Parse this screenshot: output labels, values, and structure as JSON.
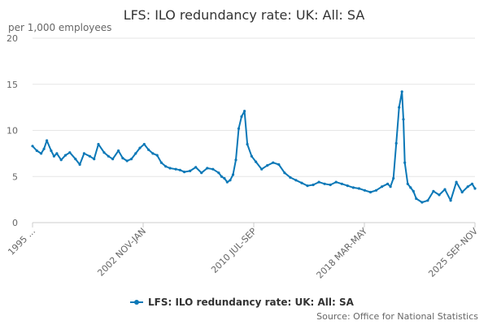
{
  "chart_data": {
    "type": "line",
    "title": "LFS: ILO redundancy rate: UK: All: SA",
    "unit_label": "per 1,000 employees",
    "ylim": [
      0,
      20
    ],
    "y_ticks": [
      0,
      5,
      10,
      15,
      20
    ],
    "x_tick_labels": [
      "1995 ...",
      "2002 NOV-JAN",
      "2010 JUL-SEP",
      "2018 MAR-MAY",
      "2025 SEP-NOV"
    ],
    "grid": true,
    "legend_position": "bottom",
    "source": "Source: Office for National Statistics",
    "series": [
      {
        "name": "LFS: ILO redundancy rate: UK: All: SA",
        "color": "#0b78b7",
        "x": [
          1995.0,
          1995.3,
          1995.6,
          1995.8,
          1996.0,
          1996.3,
          1996.5,
          1996.7,
          1997.0,
          1997.3,
          1997.6,
          1998.0,
          1998.3,
          1998.6,
          1999.0,
          1999.3,
          1999.6,
          2000.0,
          2000.3,
          2000.6,
          2001.0,
          2001.3,
          2001.6,
          2001.9,
          2002.2,
          2002.5,
          2002.8,
          2003.1,
          2003.4,
          2003.7,
          2004.0,
          2004.3,
          2004.6,
          2005.0,
          2005.3,
          2005.6,
          2006.0,
          2006.4,
          2006.8,
          2007.2,
          2007.6,
          2008.0,
          2008.2,
          2008.4,
          2008.6,
          2008.8,
          2009.0,
          2009.2,
          2009.4,
          2009.6,
          2009.8,
          2010.0,
          2010.3,
          2010.6,
          2011.0,
          2011.4,
          2011.8,
          2012.2,
          2012.6,
          2013.0,
          2013.4,
          2013.8,
          2014.2,
          2014.6,
          2015.0,
          2015.4,
          2015.8,
          2016.2,
          2016.6,
          2017.0,
          2017.4,
          2017.8,
          2018.2,
          2018.6,
          2019.0,
          2019.4,
          2019.8,
          2020.0,
          2020.2,
          2020.4,
          2020.6,
          2020.8,
          2020.9,
          2021.0,
          2021.2,
          2021.4,
          2021.6,
          2021.8,
          2022.2,
          2022.6,
          2023.0,
          2023.4,
          2023.8,
          2024.2,
          2024.6,
          2025.0,
          2025.4,
          2025.7,
          2025.9
        ],
        "values": [
          8.3,
          7.8,
          7.5,
          8.0,
          8.9,
          7.8,
          7.2,
          7.5,
          6.8,
          7.3,
          7.6,
          6.9,
          6.3,
          7.5,
          7.2,
          6.9,
          8.5,
          7.6,
          7.2,
          6.9,
          7.8,
          7.0,
          6.7,
          6.9,
          7.5,
          8.1,
          8.5,
          7.9,
          7.5,
          7.3,
          6.5,
          6.1,
          5.9,
          5.8,
          5.7,
          5.5,
          5.6,
          6.0,
          5.4,
          5.9,
          5.8,
          5.4,
          5.0,
          4.8,
          4.4,
          4.6,
          5.2,
          6.8,
          10.2,
          11.5,
          12.1,
          8.5,
          7.2,
          6.6,
          5.8,
          6.2,
          6.5,
          6.3,
          5.4,
          4.9,
          4.6,
          4.3,
          4.0,
          4.1,
          4.4,
          4.2,
          4.1,
          4.4,
          4.2,
          4.0,
          3.8,
          3.7,
          3.5,
          3.3,
          3.5,
          3.9,
          4.2,
          3.9,
          4.8,
          8.6,
          12.5,
          14.2,
          11.2,
          6.5,
          4.2,
          3.8,
          3.4,
          2.6,
          2.2,
          2.4,
          3.4,
          3.0,
          3.6,
          2.4,
          4.4,
          3.3,
          3.9,
          4.2,
          3.7
        ]
      }
    ]
  }
}
